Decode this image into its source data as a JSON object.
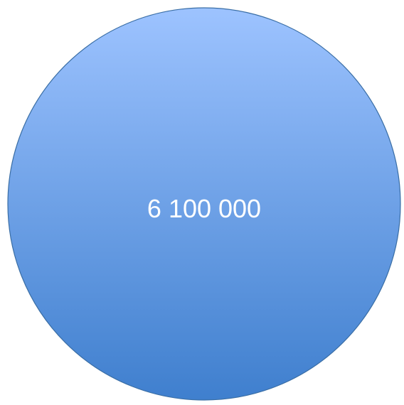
{
  "circle": {
    "label": "6 100 000",
    "fill_top": "#9dc3ff",
    "fill_bottom": "#3f7fce",
    "stroke": "#3a6ea5",
    "text_color": "#ffffff"
  }
}
